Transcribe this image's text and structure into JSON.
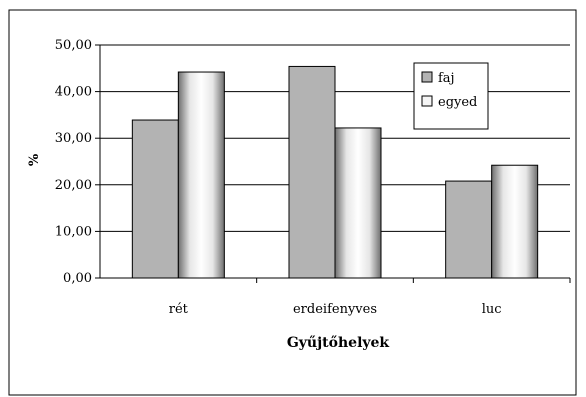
{
  "chart_data": {
    "type": "bar",
    "categories": [
      "rét",
      "erdeifenyves",
      "luc"
    ],
    "series": [
      {
        "name": "faj",
        "values": [
          33.9,
          45.4,
          20.8
        ],
        "color": "#b3b3b3"
      },
      {
        "name": "egyed",
        "values": [
          44.2,
          32.2,
          24.2
        ],
        "color": "#f2f2f2"
      }
    ],
    "xlabel": "Gyűjtőhelyek",
    "ylabel": "%",
    "ylim": [
      0,
      50
    ],
    "yticks": [
      "0,00",
      "10,00",
      "20,00",
      "30,00",
      "40,00",
      "50,00"
    ],
    "grid": true,
    "legend": "top-right"
  }
}
